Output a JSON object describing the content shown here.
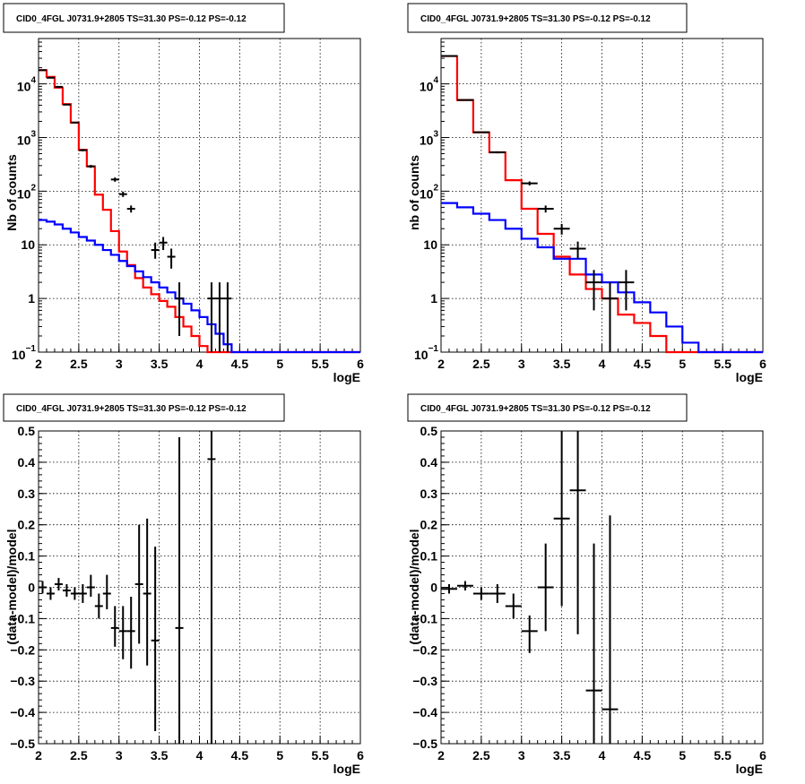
{
  "chart_data": [
    {
      "type": "line",
      "title": "CID0_4FGL J0731.9+2805 TS=31.30 PS=-0.12 PS=-0.12",
      "xlabel": "logE",
      "ylabel": "Nb of counts",
      "xlim": [
        2,
        6
      ],
      "ylim": [
        0.1,
        70000
      ],
      "yscale": "log",
      "grid": true,
      "x_ticks": [
        "2",
        "2.5",
        "3",
        "3.5",
        "4",
        "4.5",
        "5",
        "5.5",
        "6"
      ],
      "y_ticks": [
        {
          "value": 0.1,
          "label": "10",
          "sup": "−1"
        },
        {
          "value": 1,
          "label": "1",
          "sup": ""
        },
        {
          "value": 10,
          "label": "10",
          "sup": ""
        },
        {
          "value": 100,
          "label": "10",
          "sup": "2"
        },
        {
          "value": 1000,
          "label": "10",
          "sup": "3"
        },
        {
          "value": 10000,
          "label": "10",
          "sup": "4"
        }
      ],
      "bin_edges_range": [
        2,
        6
      ],
      "bin_width": 0.1,
      "series": [
        {
          "color": "#ff0000",
          "style": "step",
          "values": [
            18000,
            13500,
            8500,
            4200,
            1900,
            590,
            290,
            86,
            45,
            18,
            7.5,
            4.2,
            2.4,
            1.6,
            1.2,
            0.9,
            0.7,
            0.45,
            0.3,
            0.2,
            0.13,
            0.1,
            0.1,
            0.1,
            0.1,
            0.1,
            0.1,
            0.1,
            0.1,
            0.1,
            0.1,
            0.1,
            0.1,
            0.1,
            0.1,
            0.1,
            0.1,
            0.1,
            0.1,
            0.1
          ]
        },
        {
          "color": "#0000ff",
          "style": "step",
          "values": [
            29,
            27,
            24,
            20,
            17,
            14,
            12,
            10,
            8,
            6.5,
            5,
            4,
            3.2,
            2.5,
            2,
            1.6,
            1.3,
            1.0,
            0.8,
            0.6,
            0.45,
            0.33,
            0.22,
            0.14,
            0.1,
            0.1,
            0.1,
            0.1,
            0.1,
            0.1,
            0.1,
            0.1,
            0.1,
            0.1,
            0.1,
            0.1,
            0.1,
            0.1,
            0.1,
            0.1
          ]
        }
      ],
      "points": [
        {
          "x": 2.05,
          "y": 18000,
          "lo": 17850,
          "hi": 18150
        },
        {
          "x": 2.15,
          "y": 13000,
          "lo": 12880,
          "hi": 13120
        },
        {
          "x": 2.25,
          "y": 8800,
          "lo": 8700,
          "hi": 8900
        },
        {
          "x": 2.35,
          "y": 4100,
          "lo": 4030,
          "hi": 4170
        },
        {
          "x": 2.45,
          "y": 1900,
          "lo": 1850,
          "hi": 1950
        },
        {
          "x": 2.55,
          "y": 580,
          "lo": 555,
          "hi": 605
        },
        {
          "x": 2.65,
          "y": 290,
          "lo": 272,
          "hi": 308
        },
        {
          "x": 2.95,
          "y": 165,
          "lo": 150,
          "hi": 180
        },
        {
          "x": 3.05,
          "y": 88,
          "lo": 78,
          "hi": 98
        },
        {
          "x": 3.15,
          "y": 47,
          "lo": 40,
          "hi": 54
        },
        {
          "x": 3.45,
          "y": 8,
          "lo": 5.5,
          "hi": 11
        },
        {
          "x": 3.55,
          "y": 11,
          "lo": 8,
          "hi": 14
        },
        {
          "x": 3.65,
          "y": 6,
          "lo": 3.6,
          "hi": 8.5
        },
        {
          "x": 3.75,
          "y": 1,
          "lo": 0.2,
          "hi": 2
        },
        {
          "x": 4.15,
          "y": 1,
          "lo": 0.1,
          "hi": 2
        },
        {
          "x": 4.25,
          "y": 1,
          "lo": 0.1,
          "hi": 2
        },
        {
          "x": 4.35,
          "y": 1,
          "lo": 0.1,
          "hi": 2
        }
      ]
    },
    {
      "type": "line",
      "title": "CID0_4FGL J0731.9+2805 TS=31.30 PS=-0.12 PS=-0.12",
      "xlabel": "logE",
      "ylabel": "nb of counts",
      "xlim": [
        2,
        6
      ],
      "ylim": [
        0.1,
        70000
      ],
      "yscale": "log",
      "grid": true,
      "x_ticks": [
        "2",
        "2.5",
        "3",
        "3.5",
        "4",
        "4.5",
        "5",
        "5.5",
        "6"
      ],
      "y_ticks": [
        {
          "value": 0.1,
          "label": "10",
          "sup": "−1"
        },
        {
          "value": 1,
          "label": "1",
          "sup": ""
        },
        {
          "value": 10,
          "label": "10",
          "sup": ""
        },
        {
          "value": 100,
          "label": "10",
          "sup": "2"
        },
        {
          "value": 1000,
          "label": "10",
          "sup": "3"
        },
        {
          "value": 10000,
          "label": "10",
          "sup": "4"
        }
      ],
      "bin_edges_range": [
        2,
        6
      ],
      "bin_width": 0.2,
      "series": [
        {
          "color": "#ff0000",
          "style": "step",
          "values": [
            33000,
            5000,
            1250,
            530,
            160,
            47,
            16,
            6,
            2.8,
            1.5,
            1.0,
            0.5,
            0.35,
            0.2,
            0.1,
            0.1,
            0.1,
            0.1,
            0.1,
            0.1
          ]
        },
        {
          "color": "#0000ff",
          "style": "step",
          "values": [
            60,
            50,
            38,
            29,
            20,
            13,
            9,
            5.5,
            5.5,
            2.8,
            2.0,
            1.3,
            0.85,
            0.55,
            0.3,
            0.15,
            0.1,
            0.1,
            0.1,
            0.1
          ]
        }
      ],
      "points": [
        {
          "x": 2.1,
          "y": 33000,
          "lo": 32800,
          "hi": 33200
        },
        {
          "x": 2.3,
          "y": 5000,
          "lo": 4930,
          "hi": 5070
        },
        {
          "x": 2.5,
          "y": 1250,
          "lo": 1215,
          "hi": 1285
        },
        {
          "x": 2.7,
          "y": 530,
          "lo": 507,
          "hi": 553
        },
        {
          "x": 3.1,
          "y": 140,
          "lo": 128,
          "hi": 152
        },
        {
          "x": 3.3,
          "y": 47,
          "lo": 40,
          "hi": 54
        },
        {
          "x": 3.5,
          "y": 20,
          "lo": 15.5,
          "hi": 24.5
        },
        {
          "x": 3.7,
          "y": 8.5,
          "lo": 5.5,
          "hi": 11.5
        },
        {
          "x": 3.9,
          "y": 2,
          "lo": 0.6,
          "hi": 3.4
        },
        {
          "x": 4.1,
          "y": 1,
          "lo": 0.1,
          "hi": 2
        },
        {
          "x": 4.3,
          "y": 2,
          "lo": 0.6,
          "hi": 3.4
        }
      ]
    },
    {
      "type": "scatter",
      "title": "CID0_4FGL J0731.9+2805 TS=31.30 PS=-0.12 PS=-0.12",
      "xlabel": "logE",
      "ylabel": "(data-model)/model",
      "xlim": [
        2,
        6
      ],
      "ylim": [
        -0.5,
        0.5
      ],
      "yscale": "linear",
      "grid": true,
      "x_ticks": [
        "2",
        "2.5",
        "3",
        "3.5",
        "4",
        "4.5",
        "5",
        "5.5",
        "6"
      ],
      "y_ticks": [
        {
          "value": -0.5,
          "label": "−0.5",
          "sup": ""
        },
        {
          "value": -0.4,
          "label": "−0.4",
          "sup": ""
        },
        {
          "value": -0.3,
          "label": "−0.3",
          "sup": ""
        },
        {
          "value": -0.2,
          "label": "−0.2",
          "sup": ""
        },
        {
          "value": -0.1,
          "label": "−0.1",
          "sup": ""
        },
        {
          "value": 0,
          "label": "0",
          "sup": ""
        },
        {
          "value": 0.1,
          "label": "0.1",
          "sup": ""
        },
        {
          "value": 0.2,
          "label": "0.2",
          "sup": ""
        },
        {
          "value": 0.3,
          "label": "0.3",
          "sup": ""
        },
        {
          "value": 0.4,
          "label": "0.4",
          "sup": ""
        },
        {
          "value": 0.5,
          "label": "0.5",
          "sup": ""
        }
      ],
      "halfwidth": 0.05,
      "points": [
        {
          "x": 2.05,
          "y": 0.0,
          "lo": -0.02,
          "hi": 0.02
        },
        {
          "x": 2.15,
          "y": -0.02,
          "lo": -0.04,
          "hi": 0.0
        },
        {
          "x": 2.25,
          "y": 0.01,
          "lo": -0.01,
          "hi": 0.03
        },
        {
          "x": 2.35,
          "y": -0.01,
          "lo": -0.03,
          "hi": 0.01
        },
        {
          "x": 2.45,
          "y": -0.02,
          "lo": -0.04,
          "hi": 0.0
        },
        {
          "x": 2.55,
          "y": -0.02,
          "lo": -0.05,
          "hi": 0.01
        },
        {
          "x": 2.65,
          "y": 0.0,
          "lo": -0.03,
          "hi": 0.04
        },
        {
          "x": 2.75,
          "y": -0.06,
          "lo": -0.1,
          "hi": -0.02
        },
        {
          "x": 2.85,
          "y": -0.02,
          "lo": -0.07,
          "hi": 0.04
        },
        {
          "x": 2.95,
          "y": -0.13,
          "lo": -0.19,
          "hi": -0.06
        },
        {
          "x": 3.05,
          "y": -0.14,
          "lo": -0.23,
          "hi": -0.06
        },
        {
          "x": 3.15,
          "y": -0.14,
          "lo": -0.26,
          "hi": -0.03
        },
        {
          "x": 3.25,
          "y": 0.01,
          "lo": -0.18,
          "hi": 0.2
        },
        {
          "x": 3.35,
          "y": -0.02,
          "lo": -0.25,
          "hi": 0.22
        },
        {
          "x": 3.45,
          "y": -0.17,
          "lo": -0.46,
          "hi": 0.13
        },
        {
          "x": 3.75,
          "y": -0.13,
          "lo": -0.6,
          "hi": 0.48
        },
        {
          "x": 4.15,
          "y": 0.41,
          "lo": -0.6,
          "hi": 0.6
        }
      ]
    },
    {
      "type": "scatter",
      "title": "CID0_4FGL J0731.9+2805 TS=31.30 PS=-0.12 PS=-0.12",
      "xlabel": "logE",
      "ylabel": "(data-model)/model",
      "xlim": [
        2,
        6
      ],
      "ylim": [
        -0.5,
        0.5
      ],
      "yscale": "linear",
      "grid": true,
      "x_ticks": [
        "2",
        "2.5",
        "3",
        "3.5",
        "4",
        "4.5",
        "5",
        "5.5",
        "6"
      ],
      "y_ticks": [
        {
          "value": -0.5,
          "label": "−0.5",
          "sup": ""
        },
        {
          "value": -0.4,
          "label": "−0.4",
          "sup": ""
        },
        {
          "value": -0.3,
          "label": "−0.3",
          "sup": ""
        },
        {
          "value": -0.2,
          "label": "−0.2",
          "sup": ""
        },
        {
          "value": -0.1,
          "label": "−0.1",
          "sup": ""
        },
        {
          "value": 0,
          "label": "0",
          "sup": ""
        },
        {
          "value": 0.1,
          "label": "0.1",
          "sup": ""
        },
        {
          "value": 0.2,
          "label": "0.2",
          "sup": ""
        },
        {
          "value": 0.3,
          "label": "0.3",
          "sup": ""
        },
        {
          "value": 0.4,
          "label": "0.4",
          "sup": ""
        },
        {
          "value": 0.5,
          "label": "0.5",
          "sup": ""
        }
      ],
      "halfwidth": 0.1,
      "points": [
        {
          "x": 2.1,
          "y": -0.005,
          "lo": -0.02,
          "hi": 0.01
        },
        {
          "x": 2.3,
          "y": 0.005,
          "lo": -0.01,
          "hi": 0.02
        },
        {
          "x": 2.5,
          "y": -0.02,
          "lo": -0.04,
          "hi": 0.0
        },
        {
          "x": 2.7,
          "y": -0.02,
          "lo": -0.05,
          "hi": 0.01
        },
        {
          "x": 2.9,
          "y": -0.06,
          "lo": -0.1,
          "hi": -0.02
        },
        {
          "x": 3.1,
          "y": -0.14,
          "lo": -0.21,
          "hi": -0.09
        },
        {
          "x": 3.3,
          "y": 0.0,
          "lo": -0.14,
          "hi": 0.14
        },
        {
          "x": 3.5,
          "y": 0.22,
          "lo": -0.06,
          "hi": 0.5
        },
        {
          "x": 3.7,
          "y": 0.31,
          "lo": -0.15,
          "hi": 0.6
        },
        {
          "x": 3.9,
          "y": -0.33,
          "lo": -0.6,
          "hi": 0.14
        },
        {
          "x": 4.1,
          "y": -0.39,
          "lo": -0.6,
          "hi": 0.23
        }
      ]
    }
  ]
}
